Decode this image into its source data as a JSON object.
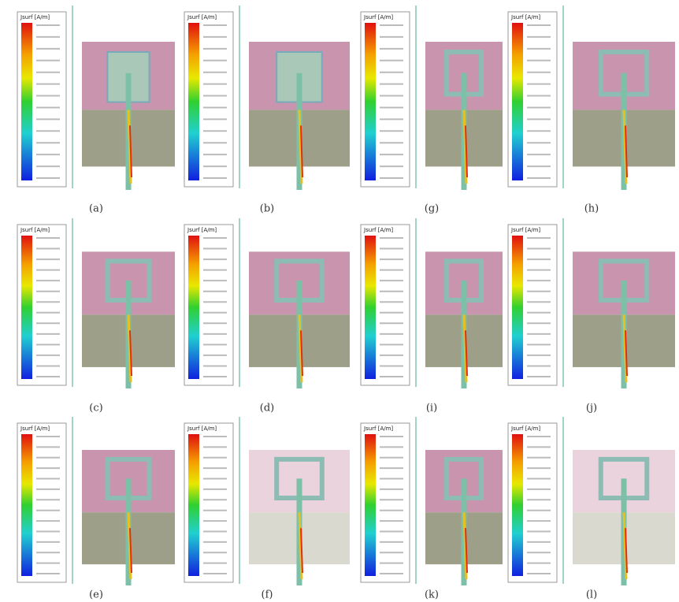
{
  "figure": {
    "panels": [
      {
        "label": "(a)",
        "legend_title": "Jsurf [A/m]"
      },
      {
        "label": "(b)",
        "legend_title": "Jsurf [A/m]"
      },
      {
        "label": "(g)",
        "legend_title": "Jsurf [A/m]"
      },
      {
        "label": "(h)",
        "legend_title": "Jsurf [A/m]"
      },
      {
        "label": "(c)",
        "legend_title": "Jsurf [A/m]"
      },
      {
        "label": "(d)",
        "legend_title": "Jsurf [A/m]"
      },
      {
        "label": "(i)",
        "legend_title": "Jsurf [A/m]"
      },
      {
        "label": "(j)",
        "legend_title": "Jsurf [A/m]"
      },
      {
        "label": "(e)",
        "legend_title": "Jsurf [A/m]"
      },
      {
        "label": "(f)",
        "legend_title": "Jsurf [A/m]"
      },
      {
        "label": "(k)",
        "legend_title": "Jsurf [A/m]"
      },
      {
        "label": "(l)",
        "legend_title": "Jsurf [A/m]"
      }
    ]
  }
}
